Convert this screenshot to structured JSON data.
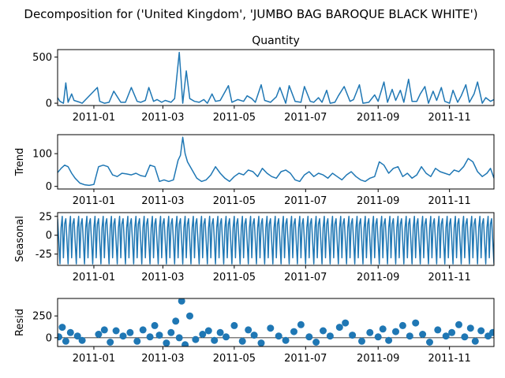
{
  "chart_data": {
    "type": "line",
    "title": "Decomposition for ('United Kingdom', 'JUMBO  BAG BAROQUE BLACK WHITE')",
    "x_range": [
      "2010-12-01",
      "2011-12-09"
    ],
    "x_ticks": [
      "2011-01",
      "2011-03",
      "2011-05",
      "2011-07",
      "2011-09",
      "2011-11"
    ],
    "line_color": "#1f77b4",
    "subplots": [
      {
        "name": "observed",
        "title": "Quantity",
        "ylabel": "",
        "kind": "line",
        "ylim": [
          -25,
          580
        ],
        "yticks": [
          0,
          500
        ],
        "x": [
          "2010-12-01",
          "2010-12-03",
          "2010-12-06",
          "2010-12-08",
          "2010-12-10",
          "2010-12-13",
          "2010-12-15",
          "2010-12-20",
          "2010-12-22",
          "2011-01-04",
          "2011-01-06",
          "2011-01-10",
          "2011-01-14",
          "2011-01-18",
          "2011-01-24",
          "2011-01-28",
          "2011-02-02",
          "2011-02-07",
          "2011-02-10",
          "2011-02-14",
          "2011-02-17",
          "2011-02-21",
          "2011-02-24",
          "2011-02-28",
          "2011-03-03",
          "2011-03-08",
          "2011-03-11",
          "2011-03-15",
          "2011-03-18",
          "2011-03-21",
          "2011-03-24",
          "2011-03-28",
          "2011-04-01",
          "2011-04-05",
          "2011-04-08",
          "2011-04-12",
          "2011-04-15",
          "2011-04-19",
          "2011-04-26",
          "2011-04-29",
          "2011-05-04",
          "2011-05-09",
          "2011-05-12",
          "2011-05-16",
          "2011-05-19",
          "2011-05-24",
          "2011-05-27",
          "2011-06-01",
          "2011-06-06",
          "2011-06-09",
          "2011-06-14",
          "2011-06-17",
          "2011-06-22",
          "2011-06-27",
          "2011-06-30",
          "2011-07-05",
          "2011-07-08",
          "2011-07-12",
          "2011-07-15",
          "2011-07-19",
          "2011-07-22",
          "2011-07-26",
          "2011-07-29",
          "2011-08-03",
          "2011-08-08",
          "2011-08-11",
          "2011-08-16",
          "2011-08-19",
          "2011-08-24",
          "2011-08-29",
          "2011-09-01",
          "2011-09-06",
          "2011-09-09",
          "2011-09-13",
          "2011-09-16",
          "2011-09-20",
          "2011-09-23",
          "2011-09-27",
          "2011-09-30",
          "2011-10-04",
          "2011-10-07",
          "2011-10-11",
          "2011-10-14",
          "2011-10-18",
          "2011-10-21",
          "2011-10-25",
          "2011-10-28",
          "2011-11-01",
          "2011-11-04",
          "2011-11-08",
          "2011-11-11",
          "2011-11-15",
          "2011-11-18",
          "2011-11-22",
          "2011-11-25",
          "2011-11-29",
          "2011-12-02",
          "2011-12-06",
          "2011-12-09"
        ],
        "values": [
          60,
          20,
          0,
          220,
          10,
          100,
          30,
          10,
          0,
          170,
          20,
          0,
          10,
          130,
          10,
          10,
          170,
          20,
          10,
          30,
          170,
          20,
          40,
          10,
          30,
          10,
          50,
          550,
          0,
          350,
          50,
          20,
          10,
          40,
          0,
          100,
          20,
          30,
          190,
          10,
          40,
          20,
          80,
          50,
          10,
          200,
          30,
          10,
          70,
          170,
          0,
          190,
          20,
          10,
          180,
          20,
          10,
          60,
          10,
          140,
          0,
          10,
          80,
          180,
          20,
          40,
          200,
          0,
          10,
          90,
          20,
          230,
          10,
          150,
          30,
          140,
          10,
          260,
          20,
          20,
          100,
          180,
          0,
          130,
          30,
          170,
          20,
          0,
          140,
          10,
          80,
          200,
          10,
          100,
          230,
          0,
          60,
          20,
          40
        ]
      },
      {
        "name": "trend",
        "title": "",
        "ylabel": "Trend",
        "kind": "line",
        "ylim": [
          -8,
          158
        ],
        "yticks": [
          0,
          100
        ],
        "x": [
          "2010-12-01",
          "2010-12-04",
          "2010-12-07",
          "2010-12-10",
          "2010-12-13",
          "2010-12-16",
          "2010-12-20",
          "2010-12-24",
          "2010-12-28",
          "2011-01-01",
          "2011-01-05",
          "2011-01-09",
          "2011-01-13",
          "2011-01-17",
          "2011-01-21",
          "2011-01-25",
          "2011-01-29",
          "2011-02-02",
          "2011-02-06",
          "2011-02-10",
          "2011-02-14",
          "2011-02-18",
          "2011-02-22",
          "2011-02-26",
          "2011-03-02",
          "2011-03-06",
          "2011-03-10",
          "2011-03-14",
          "2011-03-16",
          "2011-03-18",
          "2011-03-20",
          "2011-03-22",
          "2011-03-26",
          "2011-03-30",
          "2011-04-03",
          "2011-04-07",
          "2011-04-11",
          "2011-04-15",
          "2011-04-19",
          "2011-04-23",
          "2011-04-27",
          "2011-05-01",
          "2011-05-05",
          "2011-05-09",
          "2011-05-13",
          "2011-05-17",
          "2011-05-21",
          "2011-05-25",
          "2011-05-29",
          "2011-06-02",
          "2011-06-06",
          "2011-06-10",
          "2011-06-14",
          "2011-06-18",
          "2011-06-22",
          "2011-06-26",
          "2011-06-30",
          "2011-07-04",
          "2011-07-08",
          "2011-07-12",
          "2011-07-16",
          "2011-07-20",
          "2011-07-24",
          "2011-07-28",
          "2011-08-01",
          "2011-08-05",
          "2011-08-09",
          "2011-08-13",
          "2011-08-17",
          "2011-08-21",
          "2011-08-25",
          "2011-08-29",
          "2011-09-02",
          "2011-09-06",
          "2011-09-10",
          "2011-09-14",
          "2011-09-18",
          "2011-09-22",
          "2011-09-26",
          "2011-09-30",
          "2011-10-04",
          "2011-10-08",
          "2011-10-12",
          "2011-10-16",
          "2011-10-20",
          "2011-10-24",
          "2011-10-28",
          "2011-11-01",
          "2011-11-05",
          "2011-11-09",
          "2011-11-13",
          "2011-11-17",
          "2011-11-21",
          "2011-11-25",
          "2011-11-29",
          "2011-12-03",
          "2011-12-06",
          "2011-12-09"
        ],
        "values": [
          42,
          55,
          65,
          60,
          40,
          25,
          10,
          5,
          3,
          6,
          60,
          65,
          60,
          35,
          30,
          40,
          38,
          35,
          40,
          33,
          30,
          65,
          60,
          15,
          20,
          15,
          20,
          80,
          95,
          150,
          100,
          75,
          50,
          25,
          15,
          20,
          35,
          60,
          40,
          25,
          15,
          30,
          40,
          35,
          50,
          45,
          30,
          55,
          40,
          30,
          25,
          45,
          50,
          40,
          20,
          15,
          35,
          45,
          30,
          40,
          35,
          25,
          40,
          30,
          20,
          35,
          45,
          30,
          20,
          15,
          25,
          30,
          75,
          65,
          40,
          55,
          60,
          30,
          40,
          25,
          35,
          60,
          40,
          30,
          55,
          45,
          40,
          35,
          50,
          45,
          60,
          85,
          75,
          45,
          30,
          40,
          55,
          25
        ]
      },
      {
        "name": "seasonal",
        "title": "",
        "ylabel": "Seasonal",
        "kind": "line",
        "ylim": [
          -40,
          30
        ],
        "yticks": [
          -25,
          0,
          25
        ],
        "period_days": 7,
        "pattern": [
          22,
          -8,
          -38,
          10,
          25,
          -30,
          15
        ],
        "x_start": "2010-12-01",
        "x_end": "2011-12-09"
      },
      {
        "name": "resid",
        "title": "",
        "ylabel": "Resid",
        "kind": "scatter",
        "ylim": [
          -100,
          450
        ],
        "yticks": [
          0,
          250
        ],
        "x": [
          "2010-12-02",
          "2010-12-05",
          "2010-12-08",
          "2010-12-12",
          "2010-12-18",
          "2010-12-22",
          "2011-01-05",
          "2011-01-10",
          "2011-01-15",
          "2011-01-20",
          "2011-01-26",
          "2011-02-01",
          "2011-02-07",
          "2011-02-12",
          "2011-02-18",
          "2011-02-22",
          "2011-02-26",
          "2011-03-04",
          "2011-03-08",
          "2011-03-12",
          "2011-03-15",
          "2011-03-17",
          "2011-03-20",
          "2011-03-24",
          "2011-03-29",
          "2011-04-04",
          "2011-04-09",
          "2011-04-14",
          "2011-04-19",
          "2011-04-24",
          "2011-05-01",
          "2011-05-08",
          "2011-05-13",
          "2011-05-18",
          "2011-05-24",
          "2011-06-01",
          "2011-06-08",
          "2011-06-14",
          "2011-06-21",
          "2011-06-27",
          "2011-07-04",
          "2011-07-10",
          "2011-07-16",
          "2011-07-22",
          "2011-07-30",
          "2011-08-04",
          "2011-08-10",
          "2011-08-18",
          "2011-08-25",
          "2011-09-01",
          "2011-09-05",
          "2011-09-10",
          "2011-09-16",
          "2011-09-22",
          "2011-09-28",
          "2011-10-03",
          "2011-10-09",
          "2011-10-15",
          "2011-10-22",
          "2011-10-29",
          "2011-11-03",
          "2011-11-09",
          "2011-11-14",
          "2011-11-19",
          "2011-11-23",
          "2011-11-28",
          "2011-12-04",
          "2011-12-08"
        ],
        "values": [
          10,
          120,
          -40,
          60,
          20,
          -30,
          40,
          90,
          -50,
          80,
          20,
          60,
          -40,
          90,
          10,
          140,
          30,
          -60,
          60,
          190,
          0,
          420,
          -80,
          250,
          -20,
          40,
          80,
          -30,
          60,
          10,
          140,
          -40,
          90,
          30,
          -60,
          110,
          20,
          -30,
          70,
          150,
          10,
          -50,
          80,
          20,
          120,
          170,
          30,
          -40,
          60,
          10,
          100,
          -30,
          70,
          140,
          20,
          170,
          40,
          -50,
          90,
          20,
          60,
          150,
          10,
          110,
          -40,
          80,
          20,
          60
        ]
      }
    ]
  }
}
